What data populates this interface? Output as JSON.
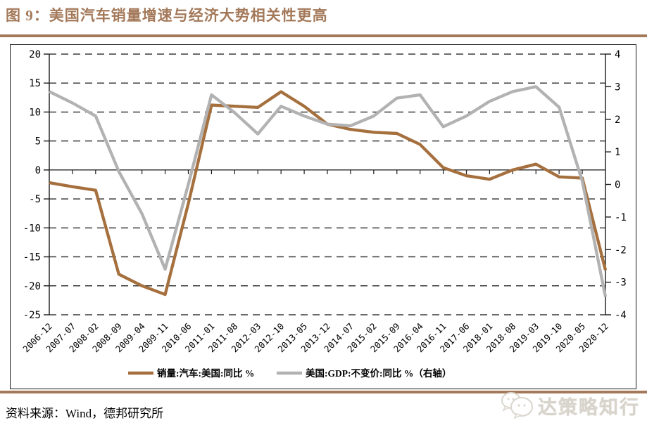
{
  "title": "图 9：美国汽车销量增速与经济大势相关性更高",
  "source": "资料来源：Wind，德邦研究所",
  "watermark": "达策略知行",
  "colors": {
    "accent_brown": "#A4795A",
    "sales_line": "#A5703E",
    "gdp_line": "#B2B2B2",
    "grid": "#3a3a3a",
    "watermark_gray": "#D8D4CB"
  },
  "chart_data": {
    "type": "line",
    "title": "",
    "categories": [
      "2006-12",
      "2007-07",
      "2008-02",
      "2008-09",
      "2009-04",
      "2009-11",
      "2010-06",
      "2011-01",
      "2011-08",
      "2012-03",
      "2012-10",
      "2013-05",
      "2013-12",
      "2014-07",
      "2015-02",
      "2015-09",
      "2016-04",
      "2016-11",
      "2017-06",
      "2018-01",
      "2018-08",
      "2019-03",
      "2019-10",
      "2020-05",
      "2020-12"
    ],
    "series": [
      {
        "name": "销量:汽车:美国:同比 %",
        "axis": "left",
        "color": "#A5703E",
        "values": [
          -2.2,
          -2.9,
          -3.5,
          -18.0,
          -20.0,
          -21.5,
          -5.8,
          11.2,
          11.0,
          10.8,
          13.5,
          11.0,
          7.9,
          7.0,
          6.5,
          6.3,
          4.4,
          0.4,
          -1.0,
          -1.6,
          0.0,
          1.0,
          -1.2,
          -1.4,
          -17.3
        ]
      },
      {
        "name": "美国:GDP:不变价:同比 %（右轴）",
        "axis": "right",
        "color": "#B2B2B2",
        "values": [
          2.85,
          2.5,
          2.1,
          0.4,
          -0.9,
          -2.6,
          0.0,
          2.75,
          2.2,
          1.55,
          2.4,
          2.1,
          1.85,
          1.8,
          2.1,
          2.65,
          2.75,
          1.77,
          2.1,
          2.55,
          2.85,
          3.0,
          2.37,
          0.1,
          -3.45
        ]
      }
    ],
    "left_axis": {
      "min": -25,
      "max": 20,
      "step": 5,
      "ticks": [
        20,
        15,
        10,
        5,
        0,
        -5,
        -10,
        -15,
        -20,
        -25
      ]
    },
    "right_axis": {
      "min": -4,
      "max": 4,
      "step": 1,
      "ticks": [
        4,
        3,
        2,
        1,
        0,
        -1,
        -2,
        -3,
        -4
      ]
    },
    "grid": "horizontal-dashed",
    "zero_line": "solid",
    "legend_position": "bottom-inside"
  }
}
